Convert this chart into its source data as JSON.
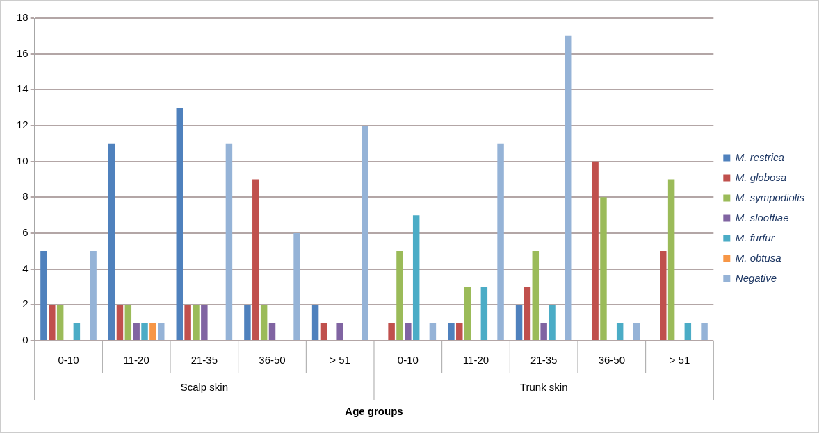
{
  "chart_data": {
    "type": "bar",
    "xlabel": "Age groups",
    "categories": [
      "0-10",
      "11-20",
      "21-35",
      "36-50",
      "> 51",
      "0-10",
      "11-20",
      "21-35",
      "36-50",
      "> 51"
    ],
    "annotations": [
      "Scalp skin",
      "Trunk skin"
    ],
    "series": [
      {
        "name": "M. restrica",
        "color": "#4f81bd",
        "values": [
          5,
          11,
          13,
          2,
          2,
          0,
          1,
          2,
          0,
          0
        ]
      },
      {
        "name": "M. globosa",
        "color": "#c0504d",
        "values": [
          2,
          2,
          2,
          9,
          1,
          1,
          1,
          3,
          10,
          5
        ]
      },
      {
        "name": "M. sympodiolis",
        "color": "#9bbb59",
        "values": [
          2,
          2,
          2,
          2,
          0,
          5,
          3,
          5,
          8,
          9
        ]
      },
      {
        "name": "M. slooffiae",
        "color": "#8064a2",
        "values": [
          0,
          1,
          2,
          1,
          1,
          1,
          0,
          1,
          0,
          0
        ]
      },
      {
        "name": "M. furfur",
        "color": "#4bacc6",
        "values": [
          1,
          1,
          0,
          0,
          0,
          7,
          3,
          2,
          1,
          1
        ]
      },
      {
        "name": "M. obtusa",
        "color": "#f79646",
        "values": [
          0,
          1,
          0,
          0,
          0,
          0,
          0,
          0,
          0,
          0
        ]
      },
      {
        "name": "Negative",
        "color": "#95b3d7",
        "values": [
          5,
          1,
          11,
          6,
          12,
          1,
          11,
          17,
          1,
          1
        ]
      }
    ],
    "ylim": [
      0,
      18
    ],
    "yticks": [
      0,
      2,
      4,
      6,
      8,
      10,
      12,
      14,
      16,
      18
    ],
    "grid": "y",
    "legend": "right"
  }
}
